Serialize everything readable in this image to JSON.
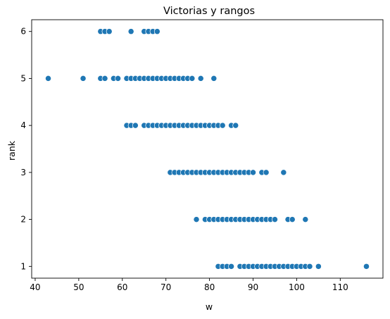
{
  "chart_data": {
    "type": "scatter",
    "title": "Victorias y rangos",
    "xlabel": "w",
    "ylabel": "rank",
    "xlim": [
      39.2,
      119.8
    ],
    "ylim": [
      0.75,
      6.25
    ],
    "xticks": [
      40,
      50,
      60,
      70,
      80,
      90,
      100,
      110
    ],
    "yticks": [
      1,
      2,
      3,
      4,
      5,
      6
    ],
    "grid": false,
    "color": "#1f77b4",
    "series": [
      {
        "points": [
          [
            55,
            6
          ],
          [
            56,
            6
          ],
          [
            57,
            6
          ],
          [
            62,
            6
          ],
          [
            65,
            6
          ],
          [
            66,
            6
          ],
          [
            67,
            6
          ],
          [
            68,
            6
          ],
          [
            43,
            5
          ],
          [
            51,
            5
          ],
          [
            55,
            5
          ],
          [
            56,
            5
          ],
          [
            58,
            5
          ],
          [
            59,
            5
          ],
          [
            61,
            5
          ],
          [
            62,
            5
          ],
          [
            63,
            5
          ],
          [
            64,
            5
          ],
          [
            65,
            5
          ],
          [
            66,
            5
          ],
          [
            67,
            5
          ],
          [
            68,
            5
          ],
          [
            69,
            5
          ],
          [
            70,
            5
          ],
          [
            71,
            5
          ],
          [
            72,
            5
          ],
          [
            73,
            5
          ],
          [
            74,
            5
          ],
          [
            75,
            5
          ],
          [
            76,
            5
          ],
          [
            78,
            5
          ],
          [
            81,
            5
          ],
          [
            61,
            4
          ],
          [
            62,
            4
          ],
          [
            63,
            4
          ],
          [
            65,
            4
          ],
          [
            66,
            4
          ],
          [
            67,
            4
          ],
          [
            68,
            4
          ],
          [
            69,
            4
          ],
          [
            70,
            4
          ],
          [
            71,
            4
          ],
          [
            72,
            4
          ],
          [
            73,
            4
          ],
          [
            74,
            4
          ],
          [
            75,
            4
          ],
          [
            76,
            4
          ],
          [
            77,
            4
          ],
          [
            78,
            4
          ],
          [
            79,
            4
          ],
          [
            80,
            4
          ],
          [
            81,
            4
          ],
          [
            82,
            4
          ],
          [
            83,
            4
          ],
          [
            85,
            4
          ],
          [
            86,
            4
          ],
          [
            71,
            3
          ],
          [
            72,
            3
          ],
          [
            73,
            3
          ],
          [
            74,
            3
          ],
          [
            75,
            3
          ],
          [
            76,
            3
          ],
          [
            77,
            3
          ],
          [
            78,
            3
          ],
          [
            79,
            3
          ],
          [
            80,
            3
          ],
          [
            81,
            3
          ],
          [
            82,
            3
          ],
          [
            83,
            3
          ],
          [
            84,
            3
          ],
          [
            85,
            3
          ],
          [
            86,
            3
          ],
          [
            87,
            3
          ],
          [
            88,
            3
          ],
          [
            89,
            3
          ],
          [
            90,
            3
          ],
          [
            92,
            3
          ],
          [
            93,
            3
          ],
          [
            97,
            3
          ],
          [
            77,
            2
          ],
          [
            79,
            2
          ],
          [
            80,
            2
          ],
          [
            81,
            2
          ],
          [
            82,
            2
          ],
          [
            83,
            2
          ],
          [
            84,
            2
          ],
          [
            85,
            2
          ],
          [
            86,
            2
          ],
          [
            87,
            2
          ],
          [
            88,
            2
          ],
          [
            89,
            2
          ],
          [
            90,
            2
          ],
          [
            91,
            2
          ],
          [
            92,
            2
          ],
          [
            93,
            2
          ],
          [
            94,
            2
          ],
          [
            95,
            2
          ],
          [
            98,
            2
          ],
          [
            99,
            2
          ],
          [
            102,
            2
          ],
          [
            82,
            1
          ],
          [
            83,
            1
          ],
          [
            84,
            1
          ],
          [
            85,
            1
          ],
          [
            87,
            1
          ],
          [
            88,
            1
          ],
          [
            89,
            1
          ],
          [
            90,
            1
          ],
          [
            91,
            1
          ],
          [
            92,
            1
          ],
          [
            93,
            1
          ],
          [
            94,
            1
          ],
          [
            95,
            1
          ],
          [
            96,
            1
          ],
          [
            97,
            1
          ],
          [
            98,
            1
          ],
          [
            99,
            1
          ],
          [
            100,
            1
          ],
          [
            101,
            1
          ],
          [
            102,
            1
          ],
          [
            103,
            1
          ],
          [
            105,
            1
          ],
          [
            116,
            1
          ]
        ]
      }
    ]
  }
}
